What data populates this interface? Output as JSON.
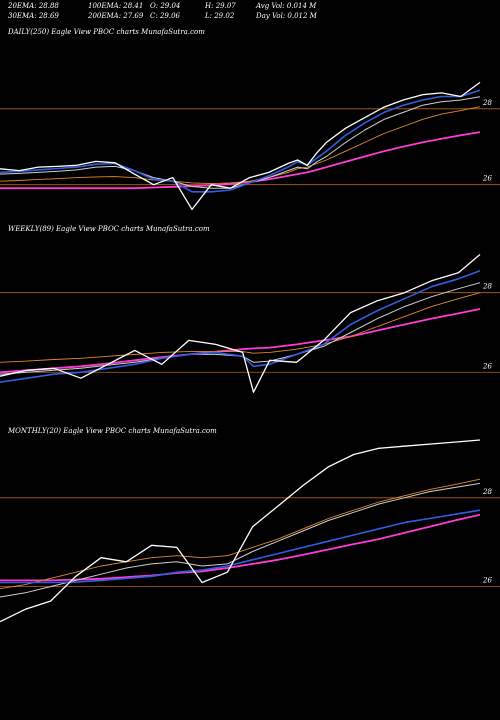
{
  "header": {
    "ema20": "20EMA: 28.88",
    "ema100": "100EMA: 28.41",
    "open": "O: 29.04",
    "high": "H: 29.07",
    "avg_vol": "Avg Vol: 0.014  M",
    "ema30": "30EMA: 28.69",
    "ema200": "200EMA: 27.69",
    "close": "C: 29.06",
    "low": "L: 29.02",
    "day_vol": "Day Vol: 0.012  M"
  },
  "colors": {
    "background": "#000000",
    "price": "#ffffff",
    "ema20": "#2f5fe0",
    "ema30": "#cfcfcf",
    "ema100": "#e08a2e",
    "ema200": "#ff3ad6",
    "guide": "#b8621b"
  },
  "chart_data": [
    {
      "type": "line",
      "label": "DAILY(250) Eagle   View  PBOC charts MunafaSutra.com",
      "ylim": [
        25.2,
        30.3
      ],
      "grid_values": [
        28.35,
        26.2
      ],
      "yticks": [
        "28",
        "26"
      ],
      "x": [
        0,
        10,
        20,
        30,
        40,
        50,
        60,
        70,
        80,
        90,
        100,
        110,
        120,
        130,
        140,
        150,
        155,
        160,
        165,
        170,
        180,
        190,
        200,
        210,
        220,
        230,
        240,
        250
      ],
      "series": [
        {
          "key": "price",
          "values": [
            26.65,
            26.6,
            26.7,
            26.72,
            26.75,
            26.86,
            26.82,
            26.5,
            26.2,
            26.4,
            25.5,
            26.2,
            26.1,
            26.4,
            26.55,
            26.8,
            26.9,
            26.75,
            27.1,
            27.4,
            27.8,
            28.1,
            28.4,
            28.6,
            28.75,
            28.8,
            28.7,
            29.1
          ]
        },
        {
          "key": "ema20",
          "values": [
            26.55,
            26.58,
            26.62,
            26.66,
            26.7,
            26.78,
            26.8,
            26.6,
            26.35,
            26.3,
            26.0,
            26.0,
            26.05,
            26.25,
            26.45,
            26.7,
            26.85,
            26.75,
            26.95,
            27.15,
            27.6,
            27.95,
            28.25,
            28.45,
            28.6,
            28.7,
            28.7,
            28.88
          ]
        },
        {
          "key": "ema30",
          "values": [
            26.5,
            26.52,
            26.55,
            26.58,
            26.62,
            26.7,
            26.72,
            26.6,
            26.4,
            26.3,
            26.15,
            26.1,
            26.1,
            26.25,
            26.4,
            26.6,
            26.7,
            26.65,
            26.85,
            27.0,
            27.4,
            27.75,
            28.05,
            28.25,
            28.45,
            28.55,
            28.6,
            28.69
          ]
        },
        {
          "key": "ema100",
          "values": [
            26.3,
            26.32,
            26.35,
            26.37,
            26.4,
            26.42,
            26.43,
            26.4,
            26.33,
            26.3,
            26.25,
            26.23,
            26.25,
            26.3,
            26.4,
            26.55,
            26.65,
            26.7,
            26.8,
            26.9,
            27.15,
            27.4,
            27.65,
            27.85,
            28.05,
            28.2,
            28.3,
            28.41
          ]
        },
        {
          "key": "ema200",
          "values": [
            26.1,
            26.1,
            26.1,
            26.1,
            26.1,
            26.1,
            26.1,
            26.1,
            26.12,
            26.14,
            26.16,
            26.18,
            26.22,
            26.28,
            26.35,
            26.45,
            26.5,
            26.55,
            26.62,
            26.7,
            26.85,
            27.0,
            27.15,
            27.28,
            27.4,
            27.5,
            27.6,
            27.69
          ]
        }
      ]
    },
    {
      "type": "line",
      "label": "WEEKLY(89) Eagle   View  PBOC charts MunafaSutra.com",
      "ylim": [
        24.9,
        29.5
      ],
      "grid_values": [
        28.1,
        26.1
      ],
      "yticks": [
        "28",
        "26"
      ],
      "x": [
        0,
        5,
        10,
        15,
        20,
        25,
        30,
        35,
        40,
        45,
        47,
        50,
        55,
        60,
        65,
        70,
        75,
        80,
        85,
        89
      ],
      "series": [
        {
          "key": "price",
          "values": [
            26.0,
            26.15,
            26.2,
            25.95,
            26.3,
            26.65,
            26.3,
            26.9,
            26.8,
            26.6,
            25.6,
            26.4,
            26.35,
            26.9,
            27.6,
            27.9,
            28.1,
            28.4,
            28.6,
            29.06
          ]
        },
        {
          "key": "ema20",
          "values": [
            25.85,
            25.95,
            26.05,
            26.1,
            26.2,
            26.3,
            26.45,
            26.55,
            26.6,
            26.5,
            26.25,
            26.3,
            26.55,
            26.8,
            27.3,
            27.65,
            27.95,
            28.25,
            28.45,
            28.65
          ]
        },
        {
          "key": "ema30",
          "values": [
            26.05,
            26.1,
            26.15,
            26.2,
            26.28,
            26.35,
            26.45,
            26.55,
            26.55,
            26.5,
            26.35,
            26.38,
            26.55,
            26.75,
            27.1,
            27.45,
            27.75,
            28.0,
            28.2,
            28.35
          ]
        },
        {
          "key": "ema100",
          "values": [
            26.35,
            26.38,
            26.42,
            26.45,
            26.5,
            26.55,
            26.6,
            26.62,
            26.62,
            26.62,
            26.58,
            26.6,
            26.68,
            26.8,
            27.0,
            27.25,
            27.5,
            27.75,
            27.95,
            28.1
          ]
        },
        {
          "key": "ema200",
          "values": [
            26.1,
            26.15,
            26.2,
            26.25,
            26.32,
            26.4,
            26.48,
            26.55,
            26.62,
            26.68,
            26.7,
            26.72,
            26.8,
            26.9,
            27.0,
            27.15,
            27.3,
            27.45,
            27.58,
            27.69
          ]
        }
      ]
    },
    {
      "type": "line",
      "label": "MONTHLY(20) Eagle   View  PBOC charts MunafaSutra.com",
      "ylim": [
        24.9,
        29.5
      ],
      "grid_values": [
        28.1,
        25.95
      ],
      "yticks": [
        "28",
        "26"
      ],
      "x": [
        0,
        1,
        2,
        3,
        4,
        5,
        6,
        7,
        8,
        9,
        10,
        11,
        12,
        13,
        14,
        15,
        16,
        17,
        18,
        19
      ],
      "series": [
        {
          "key": "price",
          "values": [
            25.1,
            25.4,
            25.6,
            26.2,
            26.65,
            26.55,
            26.95,
            26.9,
            26.05,
            26.3,
            27.4,
            27.9,
            28.4,
            28.85,
            29.15,
            29.3,
            29.35,
            29.4,
            29.45,
            29.5
          ]
        },
        {
          "key": "ema20",
          "values": [
            26.05,
            26.05,
            26.05,
            26.06,
            26.1,
            26.15,
            26.2,
            26.3,
            26.35,
            26.45,
            26.6,
            26.75,
            26.9,
            27.05,
            27.2,
            27.35,
            27.5,
            27.6,
            27.7,
            27.8
          ]
        },
        {
          "key": "ema30",
          "values": [
            25.7,
            25.8,
            25.95,
            26.1,
            26.25,
            26.4,
            26.5,
            26.55,
            26.45,
            26.5,
            26.8,
            27.05,
            27.3,
            27.55,
            27.75,
            27.95,
            28.1,
            28.25,
            28.35,
            28.45
          ]
        },
        {
          "key": "ema100",
          "values": [
            25.9,
            26.0,
            26.15,
            26.3,
            26.45,
            26.55,
            26.65,
            26.7,
            26.65,
            26.7,
            26.9,
            27.1,
            27.35,
            27.6,
            27.8,
            28.0,
            28.15,
            28.3,
            28.42,
            28.55
          ]
        },
        {
          "key": "ema200",
          "values": [
            26.1,
            26.1,
            26.1,
            26.12,
            26.14,
            26.18,
            26.22,
            26.28,
            26.32,
            26.4,
            26.5,
            26.6,
            26.72,
            26.85,
            26.98,
            27.1,
            27.25,
            27.4,
            27.55,
            27.69
          ]
        }
      ]
    }
  ]
}
